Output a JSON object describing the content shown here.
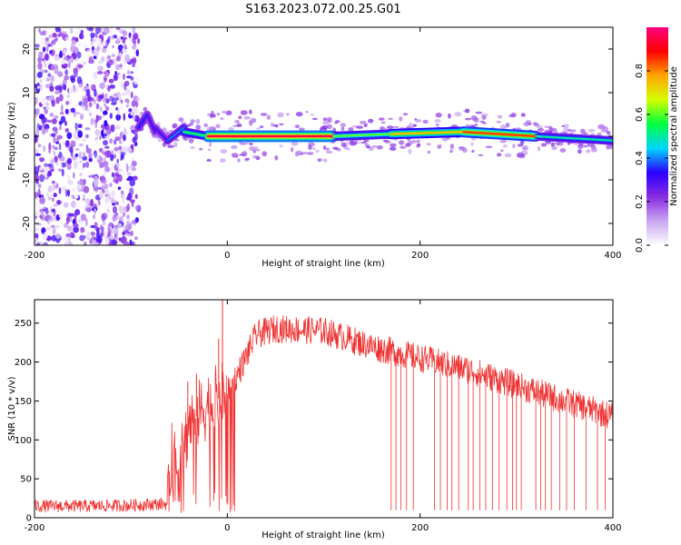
{
  "title": "S163.2023.072.00.25.G01",
  "chart_data": [
    {
      "type": "heatmap",
      "xlabel": "Height of straight line (km)",
      "ylabel": "Frequency (Hz)",
      "xlim": [
        -200,
        400
      ],
      "ylim": [
        -25,
        25
      ],
      "xticks": [
        -200,
        0,
        200,
        400
      ],
      "yticks": [
        -20,
        -10,
        0,
        10,
        20
      ],
      "colorbar": {
        "label": "Normalized spectral amplitude",
        "range": [
          0,
          1
        ],
        "ticks": [
          0.0,
          0.2,
          0.4,
          0.6,
          0.8
        ],
        "colors": [
          "#ffffff",
          "#c9a6f2",
          "#8a2be2",
          "#2a00ff",
          "#00d5ff",
          "#00ff40",
          "#d4ff00",
          "#ffa500",
          "#ff0000",
          "#ff0080"
        ]
      },
      "noise_region": {
        "x": [
          -200,
          -92
        ],
        "freq": [
          -25,
          25
        ],
        "amplitude": 0.15
      },
      "line_segments": [
        {
          "x": [
            -92,
            -83
          ],
          "freq": [
            2,
            5
          ],
          "amplitude": 0.35
        },
        {
          "x": [
            -83,
            -75
          ],
          "freq": [
            5,
            1
          ],
          "amplitude": 0.3
        },
        {
          "x": [
            -75,
            -62
          ],
          "freq": [
            2,
            -1
          ],
          "amplitude": 0.3
        },
        {
          "x": [
            -62,
            -45
          ],
          "freq": [
            -1,
            2
          ],
          "amplitude": 0.4
        },
        {
          "x": [
            -45,
            -20
          ],
          "freq": [
            1,
            0
          ],
          "amplitude": 0.55
        },
        {
          "x": [
            -20,
            110
          ],
          "freq": [
            0,
            0
          ],
          "amplitude": 0.95
        },
        {
          "x": [
            110,
            170
          ],
          "freq": [
            0,
            0.5
          ],
          "amplitude": 0.6
        },
        {
          "x": [
            170,
            245
          ],
          "freq": [
            0.5,
            1
          ],
          "amplitude": 0.75
        },
        {
          "x": [
            245,
            320
          ],
          "freq": [
            1,
            0
          ],
          "amplitude": 0.85
        },
        {
          "x": [
            320,
            400
          ],
          "freq": [
            0,
            -1
          ],
          "amplitude": 0.5
        }
      ]
    },
    {
      "type": "line",
      "xlabel": "Height of straight line (km)",
      "ylabel": "SNR (10 * v/v)",
      "xlim": [
        -200,
        400
      ],
      "ylim": [
        0,
        280
      ],
      "xticks": [
        -200,
        0,
        200,
        400
      ],
      "yticks": [
        0,
        50,
        100,
        150,
        200,
        250
      ],
      "color": "#ef3232",
      "envelope": [
        {
          "x": -200,
          "y": 15
        },
        {
          "x": -150,
          "y": 15
        },
        {
          "x": -100,
          "y": 16
        },
        {
          "x": -62,
          "y": 18
        },
        {
          "x": -58,
          "y": 80
        },
        {
          "x": -50,
          "y": 60
        },
        {
          "x": -40,
          "y": 120
        },
        {
          "x": -20,
          "y": 145
        },
        {
          "x": 0,
          "y": 160
        },
        {
          "x": 15,
          "y": 195
        },
        {
          "x": 30,
          "y": 235
        },
        {
          "x": 50,
          "y": 243
        },
        {
          "x": 100,
          "y": 240
        },
        {
          "x": 150,
          "y": 220
        },
        {
          "x": 200,
          "y": 205
        },
        {
          "x": 250,
          "y": 190
        },
        {
          "x": 300,
          "y": 170
        },
        {
          "x": 350,
          "y": 150
        },
        {
          "x": 400,
          "y": 130
        }
      ],
      "spikes": [
        {
          "x": -5,
          "y": 280
        },
        {
          "x": -9,
          "y": 230
        },
        {
          "x": -32,
          "y": 185
        },
        {
          "x": -41,
          "y": 175
        }
      ],
      "dropouts_x": [
        170,
        175,
        180,
        186,
        193,
        215,
        221,
        228,
        233,
        240,
        250,
        255,
        262,
        268,
        275,
        282,
        290,
        296,
        300,
        305,
        320,
        325,
        330,
        336,
        345,
        352,
        360,
        372,
        384,
        392
      ]
    }
  ]
}
